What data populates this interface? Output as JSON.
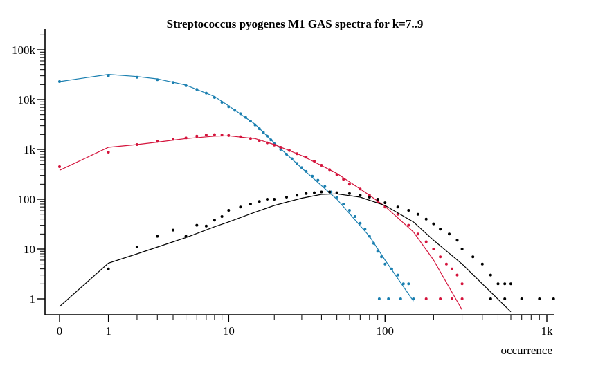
{
  "chart_data": {
    "type": "scatter",
    "title": "Streptococcus pyogenes M1 GAS spectra for k=7..9",
    "xlabel": "occurrence",
    "ylabel": "",
    "x_scale": "log(1+x)",
    "y_scale": "log",
    "xlim": [
      0,
      1100
    ],
    "ylim": [
      0.55,
      200000
    ],
    "x_ticks": [
      {
        "value": 0,
        "label": "0"
      },
      {
        "value": 1,
        "label": "1"
      },
      {
        "value": 10,
        "label": "10"
      },
      {
        "value": 100,
        "label": "100"
      },
      {
        "value": 1000,
        "label": "1k"
      }
    ],
    "y_ticks": [
      {
        "value": 1,
        "label": "1"
      },
      {
        "value": 10,
        "label": "10"
      },
      {
        "value": 100,
        "label": "100"
      },
      {
        "value": 1000,
        "label": "1k"
      },
      {
        "value": 10000,
        "label": "10k"
      },
      {
        "value": 100000,
        "label": "100k"
      }
    ],
    "grid": false,
    "legend": "none",
    "series": [
      {
        "color": "#1a7fb0",
        "points": [
          [
            0,
            23000
          ],
          [
            1,
            30000
          ],
          [
            2,
            28000
          ],
          [
            3,
            25000
          ],
          [
            4,
            22000
          ],
          [
            5,
            19000
          ],
          [
            6,
            16000
          ],
          [
            7,
            13500
          ],
          [
            8,
            11000
          ],
          [
            9,
            8800
          ],
          [
            10,
            7200
          ],
          [
            11,
            6100
          ],
          [
            12,
            5200
          ],
          [
            13,
            4400
          ],
          [
            14,
            3700
          ],
          [
            15,
            3100
          ],
          [
            16,
            2600
          ],
          [
            17,
            2200
          ],
          [
            18,
            1850
          ],
          [
            19,
            1550
          ],
          [
            20,
            1300
          ],
          [
            22,
            1000
          ],
          [
            24,
            800
          ],
          [
            26,
            650
          ],
          [
            28,
            520
          ],
          [
            30,
            430
          ],
          [
            32,
            360
          ],
          [
            35,
            290
          ],
          [
            38,
            240
          ],
          [
            42,
            180
          ],
          [
            46,
            140
          ],
          [
            50,
            110
          ],
          [
            55,
            80
          ],
          [
            60,
            60
          ],
          [
            65,
            45
          ],
          [
            70,
            33
          ],
          [
            75,
            25
          ],
          [
            80,
            18
          ],
          [
            85,
            13
          ],
          [
            90,
            9
          ],
          [
            95,
            7
          ],
          [
            100,
            5
          ],
          [
            110,
            4
          ],
          [
            120,
            3
          ],
          [
            130,
            2
          ],
          [
            140,
            2
          ],
          [
            92,
            1
          ],
          [
            105,
            1
          ],
          [
            125,
            1
          ],
          [
            150,
            1
          ]
        ],
        "fit": [
          [
            0,
            23000
          ],
          [
            1,
            32000
          ],
          [
            2,
            29000
          ],
          [
            3,
            26000
          ],
          [
            5,
            19500
          ],
          [
            8,
            11500
          ],
          [
            10,
            7500
          ],
          [
            15,
            3200
          ],
          [
            20,
            1350
          ],
          [
            30,
            420
          ],
          [
            50,
            100
          ],
          [
            80,
            18
          ],
          [
            100,
            6
          ],
          [
            150,
            0.9
          ]
        ]
      },
      {
        "color": "#d4143c",
        "points": [
          [
            0,
            450
          ],
          [
            1,
            880
          ],
          [
            2,
            1250
          ],
          [
            3,
            1450
          ],
          [
            4,
            1600
          ],
          [
            5,
            1700
          ],
          [
            6,
            1850
          ],
          [
            7,
            1950
          ],
          [
            8,
            1980
          ],
          [
            9,
            1950
          ],
          [
            10,
            1900
          ],
          [
            12,
            1800
          ],
          [
            14,
            1650
          ],
          [
            16,
            1500
          ],
          [
            18,
            1350
          ],
          [
            20,
            1220
          ],
          [
            22,
            1100
          ],
          [
            25,
            950
          ],
          [
            28,
            820
          ],
          [
            32,
            700
          ],
          [
            36,
            580
          ],
          [
            40,
            480
          ],
          [
            45,
            390
          ],
          [
            50,
            310
          ],
          [
            55,
            250
          ],
          [
            60,
            200
          ],
          [
            70,
            160
          ],
          [
            80,
            120
          ],
          [
            90,
            90
          ],
          [
            100,
            70
          ],
          [
            120,
            50
          ],
          [
            140,
            30
          ],
          [
            160,
            20
          ],
          [
            180,
            14
          ],
          [
            200,
            10
          ],
          [
            220,
            7
          ],
          [
            240,
            5
          ],
          [
            260,
            4
          ],
          [
            280,
            3
          ],
          [
            300,
            2
          ],
          [
            180,
            1
          ],
          [
            220,
            1
          ],
          [
            260,
            1
          ],
          [
            300,
            1
          ]
        ],
        "fit": [
          [
            0,
            380
          ],
          [
            1,
            1100
          ],
          [
            2,
            1250
          ],
          [
            3,
            1400
          ],
          [
            5,
            1650
          ],
          [
            8,
            1850
          ],
          [
            10,
            1880
          ],
          [
            15,
            1650
          ],
          [
            20,
            1250
          ],
          [
            30,
            750
          ],
          [
            50,
            330
          ],
          [
            80,
            120
          ],
          [
            100,
            72
          ],
          [
            150,
            22
          ],
          [
            200,
            6
          ],
          [
            300,
            0.6
          ]
        ]
      },
      {
        "color": "#000000",
        "points": [
          [
            1,
            4
          ],
          [
            2,
            11
          ],
          [
            3,
            18
          ],
          [
            4,
            24
          ],
          [
            5,
            18
          ],
          [
            6,
            30
          ],
          [
            7,
            29
          ],
          [
            8,
            38
          ],
          [
            9,
            45
          ],
          [
            10,
            60
          ],
          [
            12,
            70
          ],
          [
            14,
            80
          ],
          [
            16,
            90
          ],
          [
            18,
            100
          ],
          [
            20,
            100
          ],
          [
            24,
            110
          ],
          [
            28,
            120
          ],
          [
            32,
            130
          ],
          [
            36,
            135
          ],
          [
            40,
            140
          ],
          [
            45,
            140
          ],
          [
            50,
            135
          ],
          [
            60,
            130
          ],
          [
            70,
            120
          ],
          [
            80,
            110
          ],
          [
            90,
            100
          ],
          [
            100,
            85
          ],
          [
            120,
            70
          ],
          [
            140,
            60
          ],
          [
            160,
            50
          ],
          [
            180,
            40
          ],
          [
            200,
            32
          ],
          [
            220,
            25
          ],
          [
            250,
            20
          ],
          [
            280,
            15
          ],
          [
            300,
            10
          ],
          [
            350,
            7
          ],
          [
            400,
            5
          ],
          [
            450,
            3
          ],
          [
            500,
            2
          ],
          [
            550,
            2
          ],
          [
            600,
            2
          ],
          [
            450,
            1
          ],
          [
            550,
            1
          ],
          [
            700,
            1
          ],
          [
            900,
            1
          ],
          [
            1100,
            1
          ]
        ],
        "fit": [
          [
            0,
            0.7
          ],
          [
            1,
            5.2
          ],
          [
            2,
            8
          ],
          [
            5,
            17
          ],
          [
            8,
            28
          ],
          [
            10,
            35
          ],
          [
            15,
            55
          ],
          [
            20,
            75
          ],
          [
            30,
            105
          ],
          [
            40,
            125
          ],
          [
            50,
            128
          ],
          [
            70,
            110
          ],
          [
            100,
            75
          ],
          [
            150,
            35
          ],
          [
            200,
            15
          ],
          [
            300,
            5
          ],
          [
            400,
            2
          ],
          [
            600,
            0.55
          ]
        ]
      }
    ]
  }
}
